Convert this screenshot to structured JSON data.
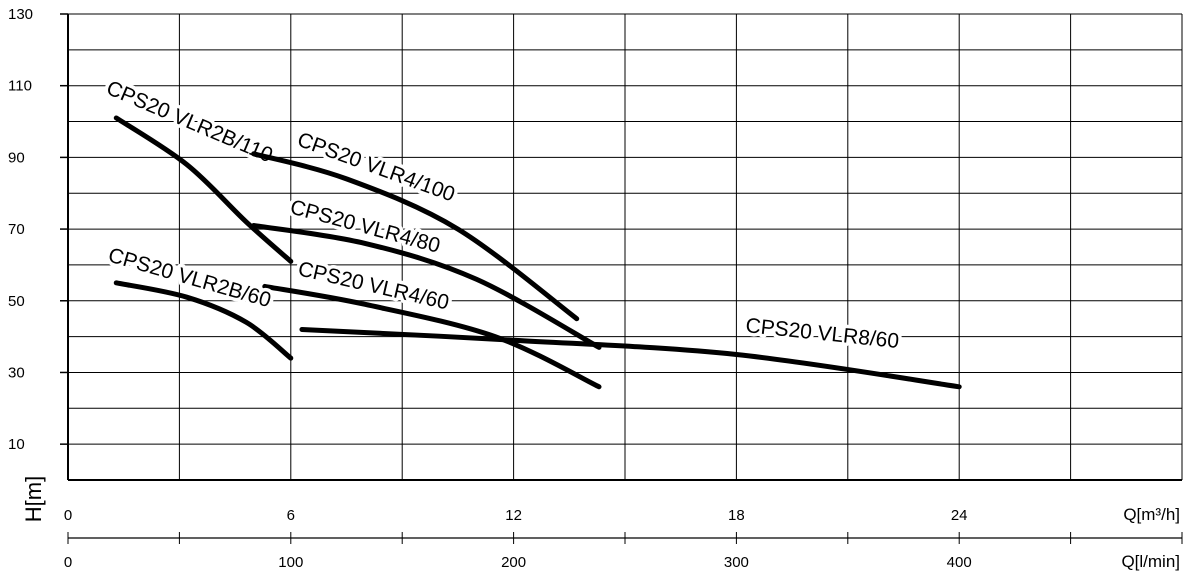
{
  "chart_data": {
    "type": "line",
    "ylabel": "H[m]",
    "ylim": [
      0,
      130
    ],
    "y_ticks": [
      10,
      30,
      50,
      70,
      90,
      110,
      130
    ],
    "x_axes": [
      {
        "label": "Q[m³/h]",
        "range": [
          0,
          30
        ],
        "ticks": [
          0,
          6,
          12,
          18,
          24
        ]
      },
      {
        "label": "Q[l/min]",
        "range": [
          0,
          500
        ],
        "ticks": [
          0,
          100,
          200,
          300,
          400
        ]
      }
    ],
    "grid": true,
    "series": [
      {
        "name": "CPS20 VLR2B/110",
        "x": [
          1.3,
          3.2,
          4.8,
          6.0
        ],
        "y": [
          101,
          88,
          72,
          61
        ]
      },
      {
        "name": "CPS20 VLR4/100",
        "x": [
          5.0,
          7.5,
          10.5,
          13.7
        ],
        "y": [
          91,
          84,
          70,
          45
        ]
      },
      {
        "name": "CPS20 VLR4/80",
        "x": [
          5.0,
          8.0,
          11.0,
          14.3
        ],
        "y": [
          71,
          66,
          56,
          37
        ]
      },
      {
        "name": "CPS20 VLR4/60",
        "x": [
          5.3,
          8.0,
          11.5,
          14.3
        ],
        "y": [
          54,
          49,
          40,
          26
        ]
      },
      {
        "name": "CPS20 VLR2B/60",
        "x": [
          1.3,
          3.2,
          4.8,
          6.0
        ],
        "y": [
          55,
          51,
          44,
          34
        ]
      },
      {
        "name": "CPS20 VLR8/60",
        "x": [
          6.3,
          12.0,
          18.0,
          24.0
        ],
        "y": [
          42,
          39,
          35,
          26
        ]
      }
    ]
  }
}
